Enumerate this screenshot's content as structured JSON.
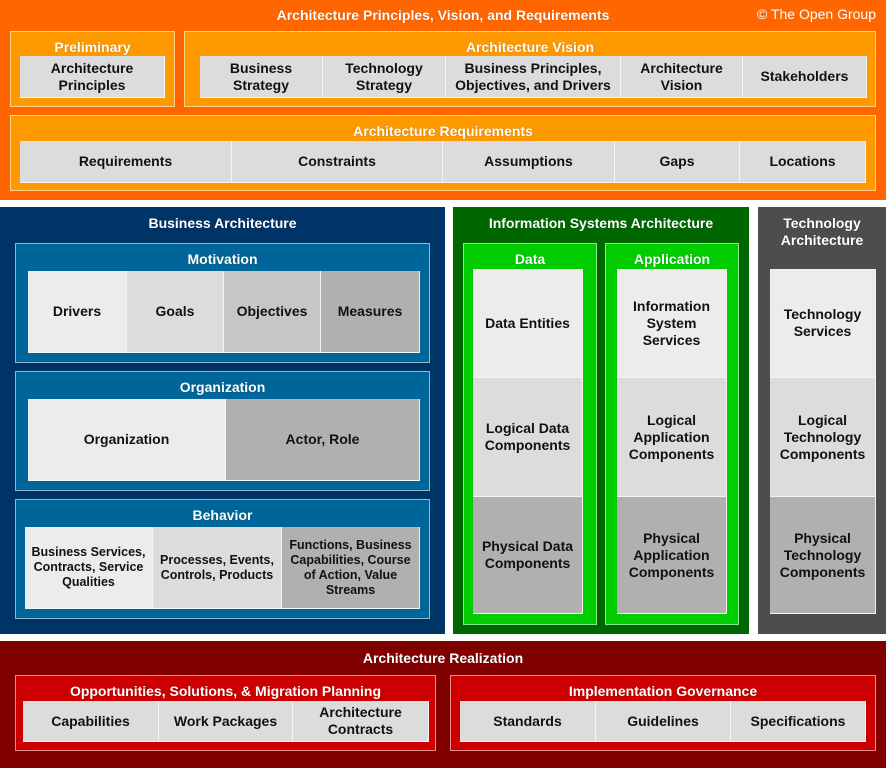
{
  "colors": {
    "orange": "#ff6600",
    "light_orange": "#ff9900",
    "navy": "#003366",
    "blue": "#006699",
    "dark_green": "#006600",
    "green": "#00cc00",
    "dark_gray": "#4d4d4d",
    "maroon": "#800000",
    "red": "#cc0000"
  },
  "top": {
    "title": "Architecture Principles, Vision, and Requirements",
    "copyright": "© The Open Group",
    "preliminary": {
      "title": "Preliminary",
      "cells": [
        "Architecture Principles"
      ]
    },
    "vision": {
      "title": "Architecture Vision",
      "cells": [
        "Business Strategy",
        "Technology Strategy",
        "Business Principles, Objectives, and Drivers",
        "Architecture Vision",
        "Stakeholders"
      ]
    },
    "requirements": {
      "title": "Architecture Requirements",
      "cells": [
        "Requirements",
        "Constraints",
        "Assumptions",
        "Gaps",
        "Locations"
      ]
    }
  },
  "business": {
    "title": "Business Architecture",
    "motivation": {
      "title": "Motivation",
      "cells": [
        "Drivers",
        "Goals",
        "Objectives",
        "Measures"
      ]
    },
    "organization": {
      "title": "Organization",
      "cells": [
        "Organization",
        "Actor, Role"
      ]
    },
    "behavior": {
      "title": "Behavior",
      "cells": [
        "Business Services, Contracts, Service Qualities",
        "Processes, Events, Controls, Products",
        "Functions, Business Capabilities, Course of Action, Value Streams"
      ]
    }
  },
  "info": {
    "title": "Information Systems Architecture",
    "data": {
      "title": "Data",
      "cells": [
        "Data Entities",
        "Logical Data Components",
        "Physical Data Components"
      ]
    },
    "application": {
      "title": "Application",
      "cells": [
        "Information System Services",
        "Logical Application Components",
        "Physical Application Components"
      ]
    }
  },
  "technology": {
    "title": "Technology Architecture",
    "cells": [
      "Technology Services",
      "Logical Technology Components",
      "Physical Technology Components"
    ]
  },
  "realization": {
    "title": "Architecture Realization",
    "opportunities": {
      "title": "Opportunities, Solutions, & Migration Planning",
      "cells": [
        "Capabilities",
        "Work Packages",
        "Architecture Contracts"
      ]
    },
    "governance": {
      "title": "Implementation Governance",
      "cells": [
        "Standards",
        "Guidelines",
        "Specifications"
      ]
    }
  }
}
